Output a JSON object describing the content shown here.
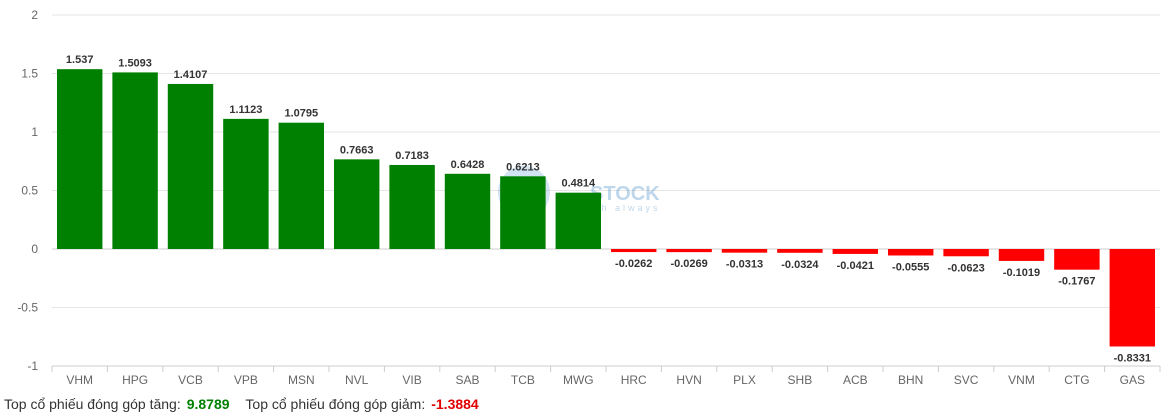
{
  "chart_data": {
    "type": "bar",
    "categories": [
      "VHM",
      "HPG",
      "VCB",
      "VPB",
      "MSN",
      "NVL",
      "VIB",
      "SAB",
      "TCB",
      "MWG",
      "HRC",
      "HVN",
      "PLX",
      "SHB",
      "ACB",
      "BHN",
      "SVC",
      "VNM",
      "CTG",
      "GAS"
    ],
    "values": [
      1.537,
      1.5093,
      1.4107,
      1.1123,
      1.0795,
      0.7663,
      0.7183,
      0.6428,
      0.6213,
      0.4814,
      -0.0262,
      -0.0269,
      -0.0313,
      -0.0324,
      -0.0421,
      -0.0555,
      -0.0623,
      -0.1019,
      -0.1767,
      -0.8331
    ],
    "data_labels": [
      "1.537",
      "1.5093",
      "1.4107",
      "1.1123",
      "1.0795",
      "0.7663",
      "0.7183",
      "0.6428",
      "0.6213",
      "0.4814",
      "-0.0262",
      "-0.0269",
      "-0.0313",
      "-0.0324",
      "-0.0421",
      "-0.0555",
      "-0.0623",
      "-0.1019",
      "-0.1767",
      "-0.8331"
    ],
    "ylim": [
      -1,
      2
    ],
    "yticks": [
      "2",
      "1.5",
      "1",
      "0.5",
      "0",
      "-0.5",
      "-1"
    ],
    "ytick_values": [
      2,
      1.5,
      1,
      0.5,
      0,
      -0.5,
      -1
    ],
    "grid": true,
    "colors": {
      "positive": "#008000",
      "negative": "#ff0000"
    }
  },
  "watermark": {
    "brand": "STOCK",
    "tagline": "sh always"
  },
  "footer": {
    "gain_label": "Top cổ phiếu đóng góp tăng:",
    "gain_value": "9.8789",
    "loss_label": "Top cổ phiếu đóng góp giảm:",
    "loss_value": "-1.3884"
  }
}
